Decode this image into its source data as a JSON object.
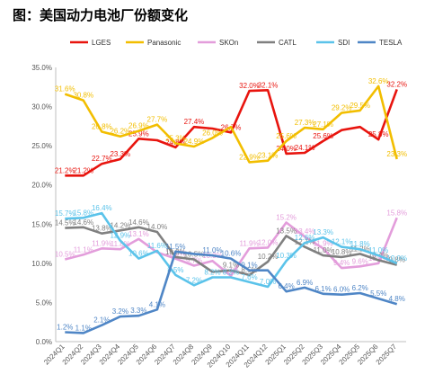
{
  "title": "图：美国动力电池厂份额变化",
  "chart_data": {
    "type": "line",
    "categories": [
      "2024Q1",
      "2024Q2",
      "2024Q3",
      "2024Q4",
      "2024Q5",
      "2024Q6",
      "2024Q7",
      "2024Q8",
      "2024Q9",
      "2024Q10",
      "2024Q11",
      "2024Q12",
      "2025Q1",
      "2025Q2",
      "2025Q3",
      "2025Q4",
      "2025Q5",
      "2025Q6",
      "2025Q7"
    ],
    "ylim": [
      0,
      35
    ],
    "yticks": [
      "0.0%",
      "5.0%",
      "10.0%",
      "15.0%",
      "20.0%",
      "25.0%",
      "30.0%",
      "35.0%"
    ],
    "ytick_values": [
      0,
      5,
      10,
      15,
      20,
      25,
      30,
      35
    ],
    "grid": false,
    "legend": "top",
    "series": [
      {
        "name": "LGES",
        "color": "#E8140E",
        "values": [
          21.2,
          21.2,
          22.7,
          23.3,
          25.9,
          25.7,
          24.8,
          27.4,
          27.2,
          26.7,
          32.0,
          32.1,
          24.0,
          24.1,
          25.6,
          27.0,
          27.4,
          25.8,
          32.2
        ],
        "labels": [
          "21.2%",
          "21.2%",
          "22.7%",
          "23.3%",
          "25.9%",
          "",
          "24.8%",
          "27.4%",
          "",
          "26.7%",
          "32.0%",
          "32.1%",
          "24.0%",
          "24.1%",
          "25.6%",
          "",
          "",
          "25.8%",
          "32.2%"
        ]
      },
      {
        "name": "Panasonic",
        "color": "#F2BE00",
        "values": [
          31.6,
          30.8,
          26.8,
          26.2,
          26.9,
          27.7,
          25.3,
          24.9,
          26.0,
          27.4,
          22.9,
          23.1,
          25.6,
          27.3,
          27.1,
          29.2,
          29.5,
          32.6,
          23.3
        ],
        "labels": [
          "31.6%",
          "30.8%",
          "26.8%",
          "26.2%",
          "26.9%",
          "27.7%",
          "25.3%",
          "24.9%",
          "26.0%",
          "",
          "22.9%",
          "23.1%",
          "25.6%",
          "27.3%",
          "27.1%",
          "29.2%",
          "29.5%",
          "32.6%",
          "23.3%"
        ]
      },
      {
        "name": "SKOn",
        "color": "#E39DDB",
        "values": [
          10.5,
          11.1,
          11.9,
          11.8,
          13.1,
          11.4,
          10.6,
          9.7,
          10.3,
          8.4,
          11.9,
          12.0,
          15.2,
          13.4,
          11.9,
          9.4,
          9.6,
          10.0,
          15.8
        ],
        "labels": [
          "10.5%",
          "11.1%",
          "11.9%",
          "11.8%",
          "13.1%",
          "",
          "10.6%",
          "9.7%",
          "10.3%",
          "8.4%",
          "11.9%",
          "12.0%",
          "15.2%",
          "13.4%",
          "11.9%",
          "9.4%",
          "9.6%",
          "10.0%",
          "15.8%"
        ]
      },
      {
        "name": "CATL",
        "color": "#808080",
        "values": [
          14.5,
          14.6,
          13.8,
          14.2,
          14.6,
          14.0,
          10.8,
          10.5,
          8.9,
          9.1,
          8.5,
          10.2,
          13.5,
          12.1,
          11.0,
          10.8,
          11.2,
          10.4,
          9.8
        ],
        "labels": [
          "14.5%",
          "14.6%",
          "13.8%",
          "14.2%",
          "14.6%",
          "14.0%",
          "10.8%",
          "10.5%",
          "",
          "9.1%",
          "8.5%",
          "10.2%",
          "13.5%",
          "12.1%",
          "11.0%",
          "10.8%",
          "11.2%",
          "10.4%",
          "9.8%"
        ]
      },
      {
        "name": "SDI",
        "color": "#5BC3EA",
        "values": [
          15.7,
          15.8,
          16.4,
          12.9,
          10.6,
          11.6,
          8.5,
          7.2,
          8.2,
          8.2,
          7.6,
          7.0,
          10.3,
          12.6,
          13.3,
          12.1,
          11.8,
          11.0,
          10.0
        ],
        "labels": [
          "15.7%",
          "15.8%",
          "16.4%",
          "12.9%",
          "10.6%",
          "11.6%",
          "8.5%",
          "7.2%",
          "8.2%",
          "8.2%",
          "7.6%",
          "7.0%",
          "10.3%",
          "12.6%",
          "13.3%",
          "12.1%",
          "11.8%",
          "11.0%",
          "10.0%"
        ]
      },
      {
        "name": "TESLA",
        "color": "#4F86C6",
        "values": [
          1.2,
          1.1,
          2.1,
          3.2,
          3.3,
          4.1,
          11.5,
          11.2,
          11.0,
          10.6,
          9.1,
          9.1,
          6.4,
          6.9,
          6.1,
          6.0,
          6.2,
          5.5,
          4.8
        ],
        "labels": [
          "1.2%",
          "1.1%",
          "2.1%",
          "3.2%",
          "3.3%",
          "4.1%",
          "11.5%",
          "",
          "11.0%",
          "10.6%",
          "9.1%",
          "",
          "6.4%",
          "6.9%",
          "6.1%",
          "6.0%",
          "6.2%",
          "5.5%",
          "4.8%"
        ]
      }
    ]
  }
}
